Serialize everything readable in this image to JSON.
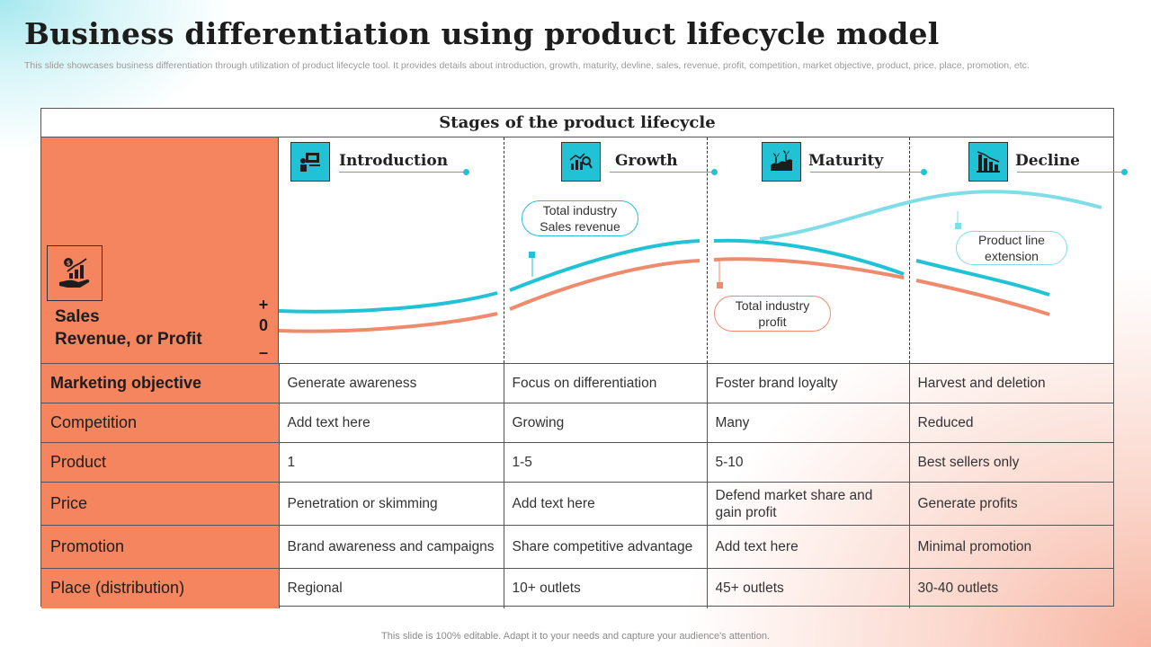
{
  "title": "Business differentiation using product lifecycle model",
  "subtitle": "This slide showcases business differentiation through utilization of product lifecycle tool. It provides details about introduction, growth, maturity, devline, sales, revenue, profit, competition, market objective, product, price, place, promotion, etc.",
  "footer": "This slide is 100% editable. Adapt it to your needs and capture your audience's attention.",
  "stages_header": "Stages of the product lifecycle",
  "stages": [
    {
      "label": "Introduction",
      "icon": "presentation-board-icon"
    },
    {
      "label": "Growth",
      "icon": "growth-chart-search-icon"
    },
    {
      "label": "Maturity",
      "icon": "plant-growth-icon"
    },
    {
      "label": "Decline",
      "icon": "declining-bars-icon"
    }
  ],
  "left_panel": {
    "icon": "hand-money-growth-icon",
    "label_line1": "Sales",
    "label_line2": "Revenue, or Profit",
    "axis_plus": "+",
    "axis_zero": "0",
    "axis_minus": "–"
  },
  "callouts": {
    "sales_revenue_line1": "Total industry",
    "sales_revenue_line2": "Sales revenue",
    "profit_line1": "Total industry",
    "profit_line2": "profit",
    "extension_line1": "Product line",
    "extension_line2": "extension"
  },
  "colors": {
    "accent_cyan": "#22c2d6",
    "accent_light_cyan": "#7fdde8",
    "accent_orange": "#f5855f",
    "profit_line": "#f08a6c"
  },
  "rows": [
    {
      "header": "Marketing objective",
      "bold": true,
      "cells": [
        "Generate awareness",
        "Focus on differentiation",
        "Foster brand loyalty",
        "Harvest and deletion"
      ]
    },
    {
      "header": "Competition",
      "bold": false,
      "cells": [
        "Add text here",
        "Growing",
        "Many",
        "Reduced"
      ]
    },
    {
      "header": "Product",
      "bold": false,
      "cells": [
        "1",
        "1-5",
        "5-10",
        "Best sellers only"
      ]
    },
    {
      "header": "Price",
      "bold": false,
      "cells": [
        "Penetration or skimming",
        "Add text here",
        "Defend market share and gain profit",
        "Generate profits"
      ]
    },
    {
      "header": "Promotion",
      "bold": false,
      "cells": [
        "Brand awareness and campaigns",
        "Share competitive advantage",
        "Add text here",
        "Minimal promotion"
      ]
    },
    {
      "header": "Place (distribution)",
      "bold": false,
      "cells": [
        "Regional",
        "10+ outlets",
        "45+ outlets",
        "30-40 outlets"
      ]
    }
  ]
}
